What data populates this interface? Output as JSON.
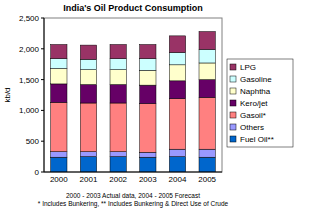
{
  "chart_data": {
    "type": "bar",
    "stacked": true,
    "title": "India's Oil Product Consumption",
    "y_label": "kb/d",
    "categories": [
      "2000",
      "2001",
      "2002",
      "2003",
      "2004",
      "2005"
    ],
    "series": [
      {
        "name": "Fuel Oil**",
        "color": "#0066cc",
        "values": [
          240,
          250,
          250,
          240,
          250,
          240
        ]
      },
      {
        "name": "Others",
        "color": "#9999ff",
        "values": [
          90,
          80,
          80,
          80,
          120,
          130
        ]
      },
      {
        "name": "Gasoil*",
        "color": "#ff8080",
        "values": [
          800,
          790,
          790,
          790,
          820,
          840
        ]
      },
      {
        "name": "Kero/jet",
        "color": "#660066",
        "values": [
          300,
          300,
          300,
          300,
          290,
          290
        ]
      },
      {
        "name": "Naphtha",
        "color": "#ffffcc",
        "values": [
          250,
          240,
          240,
          240,
          260,
          270
        ]
      },
      {
        "name": "Gasoline",
        "color": "#ccffff",
        "values": [
          160,
          170,
          180,
          190,
          200,
          220
        ]
      },
      {
        "name": "LPG",
        "color": "#993366",
        "values": [
          230,
          230,
          230,
          230,
          270,
          290
        ]
      }
    ],
    "ylim": [
      0,
      2500
    ],
    "yticks": [
      0,
      500,
      {
        "value": 1000,
        "label": "1,000"
      },
      {
        "value": 1500,
        "label": "1,500"
      },
      {
        "value": 2000,
        "label": "2,000"
      },
      {
        "value": 2500,
        "label": "2,500"
      }
    ],
    "grid": false,
    "legend": "right",
    "annotations": [
      "2000 - 2003 Actual data, 2004 - 2005 Forecast",
      "* Includes Bunkering, ** Includes Bunkering & Direct Use of Crude"
    ]
  }
}
